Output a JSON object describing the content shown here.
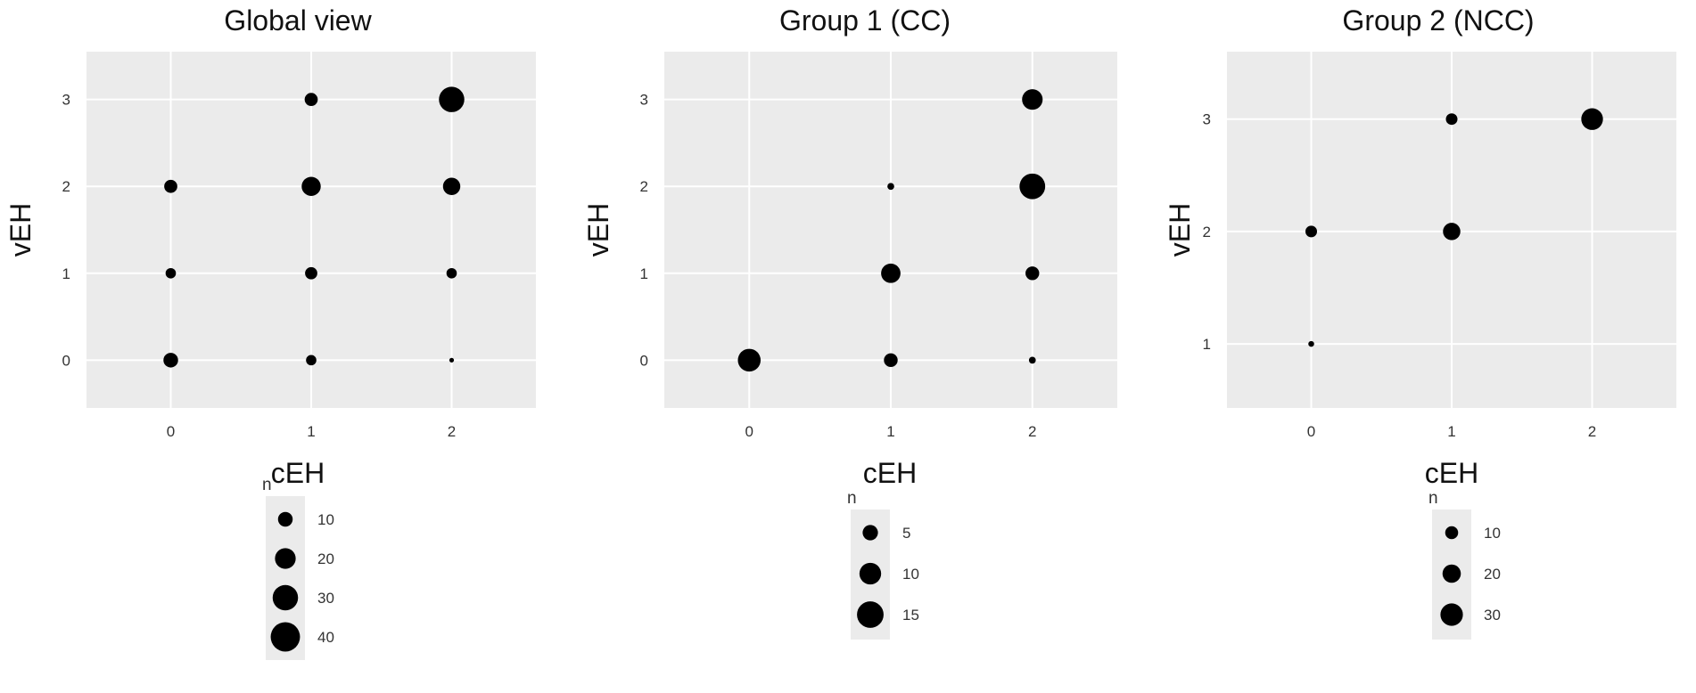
{
  "chart_data": [
    {
      "type": "scatter",
      "title": "Global view",
      "xlabel": "cEH",
      "ylabel": "vEH",
      "x_ticks": [
        "0",
        "1",
        "2"
      ],
      "y_ticks": [
        "0",
        "1",
        "2",
        "3"
      ],
      "xlim": [
        -0.6,
        2.6
      ],
      "ylim": [
        -0.55,
        3.55
      ],
      "grid": true,
      "points": [
        {
          "x": 0,
          "y": 0,
          "n": 10
        },
        {
          "x": 0,
          "y": 1,
          "n": 5
        },
        {
          "x": 0,
          "y": 2,
          "n": 8
        },
        {
          "x": 1,
          "y": 0,
          "n": 5
        },
        {
          "x": 1,
          "y": 1,
          "n": 7
        },
        {
          "x": 1,
          "y": 2,
          "n": 17
        },
        {
          "x": 1,
          "y": 3,
          "n": 8
        },
        {
          "x": 2,
          "y": 0,
          "n": 1
        },
        {
          "x": 2,
          "y": 1,
          "n": 5
        },
        {
          "x": 2,
          "y": 2,
          "n": 14
        },
        {
          "x": 2,
          "y": 3,
          "n": 30
        }
      ],
      "legend": {
        "title": "n",
        "placement": "bottom",
        "entries": [
          10,
          20,
          30,
          40
        ],
        "labels": [
          "10",
          "20",
          "30",
          "40"
        ]
      }
    },
    {
      "type": "scatter",
      "title": "Group 1 (CC)",
      "xlabel": "cEH",
      "ylabel": "vEH",
      "x_ticks": [
        "0",
        "1",
        "2"
      ],
      "y_ticks": [
        "0",
        "1",
        "2",
        "3"
      ],
      "xlim": [
        -0.6,
        2.6
      ],
      "ylim": [
        -0.55,
        3.55
      ],
      "grid": true,
      "points": [
        {
          "x": 0,
          "y": 0,
          "n": 11
        },
        {
          "x": 1,
          "y": 0,
          "n": 4
        },
        {
          "x": 1,
          "y": 1,
          "n": 8
        },
        {
          "x": 1,
          "y": 2,
          "n": 1
        },
        {
          "x": 2,
          "y": 0,
          "n": 1
        },
        {
          "x": 2,
          "y": 1,
          "n": 4
        },
        {
          "x": 2,
          "y": 2,
          "n": 14
        },
        {
          "x": 2,
          "y": 3,
          "n": 9
        }
      ],
      "legend": {
        "title": "n",
        "placement": "bottom",
        "entries": [
          5,
          10,
          15
        ],
        "labels": [
          "5",
          "10",
          "15"
        ]
      }
    },
    {
      "type": "scatter",
      "title": "Group 2 (NCC)",
      "xlabel": "cEH",
      "ylabel": "vEH",
      "x_ticks": [
        "0",
        "1",
        "2"
      ],
      "y_ticks": [
        "1",
        "2",
        "3"
      ],
      "xlim": [
        -0.6,
        2.6
      ],
      "ylim": [
        0.43,
        3.6
      ],
      "grid": true,
      "points": [
        {
          "x": 0,
          "y": 1,
          "n": 2
        },
        {
          "x": 0,
          "y": 2,
          "n": 8
        },
        {
          "x": 1,
          "y": 2,
          "n": 18
        },
        {
          "x": 1,
          "y": 3,
          "n": 8
        },
        {
          "x": 2,
          "y": 3,
          "n": 28
        }
      ],
      "legend": {
        "title": "n",
        "placement": "bottom",
        "entries": [
          10,
          20,
          30
        ],
        "labels": [
          "10",
          "20",
          "30"
        ]
      }
    }
  ]
}
